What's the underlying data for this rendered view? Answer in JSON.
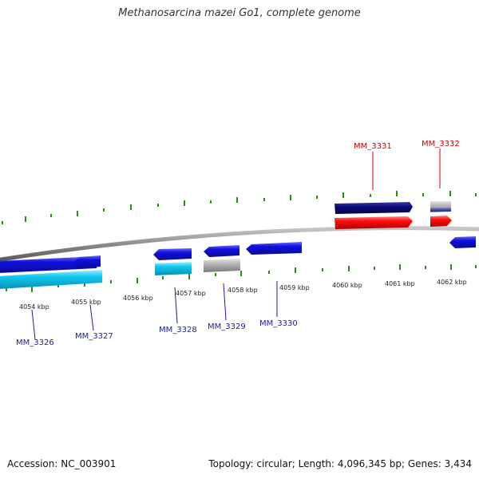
{
  "title": "Methanosarcina mazei Go1, complete genome",
  "footer": {
    "accession": "Accession: NC_003901",
    "summary": "Topology: circular; Length: 4,096,345 bp; Genes: 3,434"
  },
  "colors": {
    "backbone": "#8c8c8c",
    "tick": "#2a8a1a",
    "forward_label": "#cc0000",
    "reverse_label": "#1a1aaa",
    "cds_blue": "#1010e0",
    "cds_navy": "#0a0a78",
    "cds_red": "#ff1010",
    "cds_cyan": "#10c8f0",
    "cds_gray": "#b4b4b4",
    "cds_slate": "#5a5aa8"
  },
  "scale_labels": [
    "4054 kbp",
    "4055 kbp",
    "4056 kbp",
    "4057 kbp",
    "4058 kbp",
    "4059 kbp",
    "4060 kbp",
    "4061 kbp",
    "4062 kbp"
  ],
  "gene_labels": [
    {
      "id": "MM_3326",
      "strand": "reverse"
    },
    {
      "id": "MM_3327",
      "strand": "reverse"
    },
    {
      "id": "MM_3328",
      "strand": "reverse"
    },
    {
      "id": "MM_3329",
      "strand": "reverse"
    },
    {
      "id": "MM_3330",
      "strand": "reverse"
    },
    {
      "id": "MM_3331",
      "strand": "forward"
    },
    {
      "id": "MM_3332",
      "strand": "forward"
    }
  ]
}
